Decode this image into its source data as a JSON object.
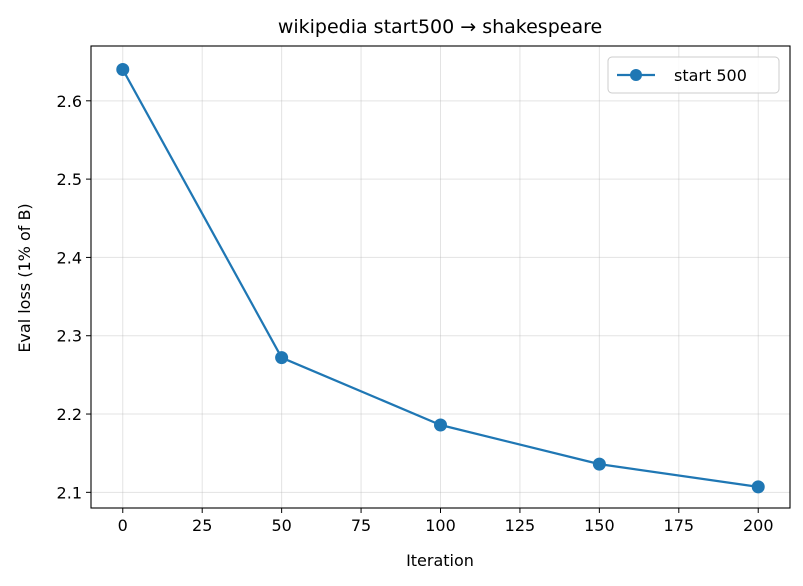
{
  "chart_data": {
    "type": "line",
    "title": "wikipedia start500 → shakespeare",
    "xlabel": "Iteration",
    "ylabel": "Eval loss (1% of B)",
    "xlim": [
      -10,
      210
    ],
    "ylim": [
      2.08,
      2.67
    ],
    "xticks": [
      0,
      25,
      50,
      75,
      100,
      125,
      150,
      175,
      200
    ],
    "yticks": [
      2.1,
      2.2,
      2.3,
      2.4,
      2.5,
      2.6
    ],
    "xtick_labels": [
      "0",
      "25",
      "50",
      "75",
      "100",
      "125",
      "150",
      "175",
      "200"
    ],
    "ytick_labels": [
      "2.1",
      "2.2",
      "2.3",
      "2.4",
      "2.5",
      "2.6"
    ],
    "grid": true,
    "legend_position": "top-right",
    "series": [
      {
        "name": "start 500",
        "color": "#1f77b4",
        "marker": "circle",
        "x": [
          0,
          50,
          100,
          150,
          200
        ],
        "y": [
          2.64,
          2.272,
          2.186,
          2.136,
          2.107
        ]
      }
    ]
  }
}
